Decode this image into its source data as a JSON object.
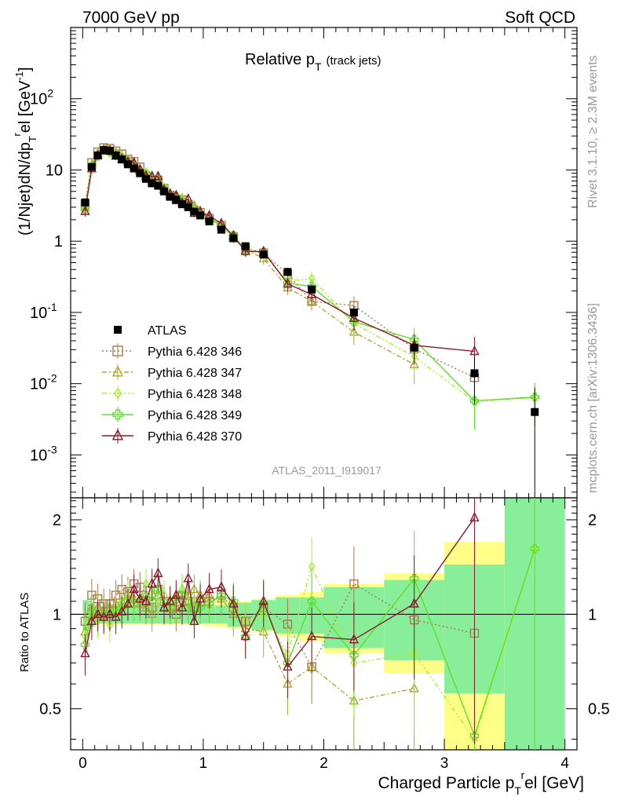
{
  "header": {
    "left": "7000 GeV pp",
    "right": "Soft QCD"
  },
  "side": {
    "rivet": "Rivet 3.1.10, ≥ 2.3M events",
    "mcplots": "mcplots.cern.ch [arXiv:1306.3436]"
  },
  "chart_data": {
    "type": "scatter",
    "title": "Relative p_T (track jets)",
    "title_main": "Relative p",
    "title_sub": "T",
    "title_note": "(track jets)",
    "analysis_label": "ATLAS_2011_I919017",
    "xlabel": "Charged Particle p_T^rel [GeV]",
    "xlabel_main": "Charged Particle p",
    "xlabel_sub": "T",
    "xlabel_sup": "r",
    "xlabel_tail": "el [GeV]",
    "ylabel": "(1/Njet)dN/dp_T^rel [GeV^-1]",
    "ylabel_pre": "(1/Njet)dN/dp",
    "ylabel_sub": "T",
    "ylabel_sup": "r",
    "ylabel_mid": "el [GeV",
    "ylabel_exp": "-1",
    "ylabel_end": "]",
    "ratio_ylabel": "Ratio to ATLAS",
    "xlim": [
      -0.1,
      4.1
    ],
    "ylim": [
      0.00025,
      1000
    ],
    "yscale": "log",
    "ratio_ylim": [
      0.37,
      2.35
    ],
    "x_ticks": [
      "0",
      "1",
      "2",
      "3",
      "4"
    ],
    "y_ticks": [
      {
        "base": "10",
        "exp": "-3"
      },
      {
        "base": "10",
        "exp": "-2"
      },
      {
        "base": "10",
        "exp": "-1"
      },
      {
        "base": "1",
        "exp": ""
      },
      {
        "base": "10",
        "exp": ""
      },
      {
        "base": "10",
        "exp": "2"
      }
    ],
    "ratio_ticks": [
      "0.5",
      "1",
      "2"
    ],
    "legend_position": "middle-left",
    "data": {
      "name": "ATLAS",
      "x": [
        0.02,
        0.075,
        0.125,
        0.175,
        0.225,
        0.275,
        0.325,
        0.375,
        0.425,
        0.475,
        0.525,
        0.575,
        0.625,
        0.675,
        0.725,
        0.775,
        0.825,
        0.875,
        0.925,
        0.975,
        1.05,
        1.15,
        1.25,
        1.35,
        1.5,
        1.7,
        1.9,
        2.25,
        2.75,
        3.25,
        3.75
      ],
      "y": [
        3.5,
        11,
        16,
        19,
        18.5,
        16,
        14,
        12,
        10.5,
        9,
        7.5,
        6.5,
        6,
        5,
        4.2,
        3.8,
        3.3,
        3.0,
        2.6,
        2.3,
        1.9,
        1.45,
        1.1,
        0.85,
        0.65,
        0.37,
        0.21,
        0.1,
        0.032,
        0.014,
        0.004
      ],
      "rel_err_stat": [
        0.05,
        0.04,
        0.03,
        0.03,
        0.03,
        0.03,
        0.03,
        0.03,
        0.03,
        0.03,
        0.03,
        0.03,
        0.03,
        0.03,
        0.03,
        0.03,
        0.03,
        0.03,
        0.03,
        0.03,
        0.03,
        0.03,
        0.04,
        0.04,
        0.05,
        0.06,
        0.06,
        0.1,
        0.13,
        0.2,
        0.7
      ],
      "rel_err_total": [
        0.1,
        0.08,
        0.07,
        0.07,
        0.07,
        0.07,
        0.07,
        0.07,
        0.07,
        0.07,
        0.07,
        0.07,
        0.07,
        0.07,
        0.07,
        0.07,
        0.07,
        0.07,
        0.07,
        0.07,
        0.08,
        0.09,
        0.1,
        0.1,
        0.12,
        0.15,
        0.18,
        0.25,
        0.35,
        0.7,
        1.2
      ],
      "bins": [
        [
          0,
          0.05
        ],
        [
          0.05,
          0.1
        ],
        [
          0.1,
          0.15
        ],
        [
          0.15,
          0.2
        ],
        [
          0.2,
          0.25
        ],
        [
          0.25,
          0.3
        ],
        [
          0.3,
          0.35
        ],
        [
          0.35,
          0.4
        ],
        [
          0.4,
          0.45
        ],
        [
          0.45,
          0.5
        ],
        [
          0.5,
          0.55
        ],
        [
          0.55,
          0.6
        ],
        [
          0.6,
          0.65
        ],
        [
          0.65,
          0.7
        ],
        [
          0.7,
          0.75
        ],
        [
          0.75,
          0.8
        ],
        [
          0.8,
          0.85
        ],
        [
          0.85,
          0.9
        ],
        [
          0.9,
          0.95
        ],
        [
          0.95,
          1.0
        ],
        [
          1.0,
          1.1
        ],
        [
          1.1,
          1.2
        ],
        [
          1.2,
          1.3
        ],
        [
          1.3,
          1.4
        ],
        [
          1.4,
          1.6
        ],
        [
          1.6,
          1.8
        ],
        [
          1.8,
          2.0
        ],
        [
          2.0,
          2.5
        ],
        [
          2.5,
          3.0
        ],
        [
          3.0,
          3.5
        ],
        [
          3.5,
          4.0
        ]
      ]
    },
    "series": [
      {
        "name": "Pythia 6.428 346",
        "color": "#a67c52",
        "dash": "2,3",
        "marker": "square-open",
        "x": [
          0.02,
          0.075,
          0.125,
          0.175,
          0.225,
          0.275,
          0.325,
          0.375,
          0.425,
          0.475,
          0.525,
          0.575,
          0.625,
          0.675,
          0.725,
          0.775,
          0.825,
          0.875,
          0.925,
          0.975,
          1.05,
          1.15,
          1.25,
          1.35,
          1.5,
          1.7,
          1.9,
          2.25,
          2.75,
          3.25
        ],
        "ratio": [
          0.95,
          1.15,
          1.12,
          1.08,
          1.08,
          1.15,
          1.2,
          1.18,
          1.25,
          1.22,
          1.1,
          1.05,
          1.2,
          1.1,
          1.05,
          1.0,
          1.15,
          1.1,
          1.05,
          1.1,
          1.1,
          1.15,
          1.05,
          0.95,
          1.05,
          0.93,
          0.68,
          1.25,
          0.96,
          0.87
        ]
      },
      {
        "name": "Pythia 6.428 347",
        "color": "#a8a832",
        "dash": "6,3,2,3",
        "marker": "triangle-open",
        "x": [
          0.02,
          0.075,
          0.125,
          0.175,
          0.225,
          0.275,
          0.325,
          0.375,
          0.425,
          0.475,
          0.525,
          0.575,
          0.625,
          0.675,
          0.725,
          0.775,
          0.825,
          0.875,
          0.925,
          0.975,
          1.05,
          1.15,
          1.25,
          1.35,
          1.5,
          1.7,
          1.9,
          2.25,
          2.75
        ],
        "ratio": [
          0.88,
          1.05,
          1.05,
          1.02,
          1.05,
          1.08,
          1.1,
          1.15,
          1.12,
          1.08,
          1.05,
          1.0,
          1.15,
          1.05,
          1.1,
          1.05,
          1.2,
          1.1,
          1.2,
          1.15,
          1.15,
          1.12,
          1.0,
          0.9,
          0.88,
          0.6,
          0.68,
          0.53,
          0.58
        ]
      },
      {
        "name": "Pythia 6.428 348",
        "color": "#aaee33",
        "dash": "6,3,2,3,2,3",
        "marker": "diamond-open",
        "x": [
          0.02,
          0.075,
          0.125,
          0.175,
          0.225,
          0.275,
          0.325,
          0.375,
          0.425,
          0.475,
          0.525,
          0.575,
          0.625,
          0.675,
          0.725,
          0.775,
          0.825,
          0.875,
          0.925,
          0.975,
          1.05,
          1.15,
          1.25,
          1.35,
          1.5,
          1.7,
          1.9,
          2.25,
          2.75,
          3.25,
          3.75
        ],
        "ratio": [
          0.85,
          1.0,
          0.95,
          0.98,
          0.92,
          1.02,
          1.1,
          1.15,
          1.1,
          1.12,
          1.25,
          1.2,
          1.1,
          1.15,
          1.05,
          1.1,
          1.2,
          1.15,
          1.05,
          1.1,
          1.1,
          1.12,
          1.05,
          0.95,
          1.0,
          0.75,
          1.42,
          0.7,
          0.75,
          0.4,
          1.6
        ]
      },
      {
        "name": "Pythia 6.428 349",
        "color": "#5ee02a",
        "dash": "",
        "marker": "cross-open",
        "x": [
          0.02,
          0.075,
          0.125,
          0.175,
          0.225,
          0.275,
          0.325,
          0.375,
          0.425,
          0.475,
          0.525,
          0.575,
          0.625,
          0.675,
          0.725,
          0.775,
          0.825,
          0.875,
          0.925,
          0.975,
          1.05,
          1.15,
          1.25,
          1.35,
          1.5,
          1.7,
          1.9,
          2.25,
          2.75,
          3.25,
          3.75
        ],
        "ratio": [
          0.8,
          1.02,
          0.98,
          1.0,
          1.0,
          1.02,
          1.05,
          1.1,
          1.08,
          1.1,
          1.15,
          1.1,
          1.2,
          1.1,
          1.05,
          1.12,
          1.15,
          1.05,
          1.1,
          1.05,
          1.08,
          1.15,
          1.1,
          0.85,
          1.08,
          0.7,
          1.1,
          0.74,
          1.3,
          0.41,
          1.62
        ]
      },
      {
        "name": "Pythia 6.428 370",
        "color": "#8b1a2e",
        "dash": "",
        "marker": "triangle-open",
        "x": [
          0.02,
          0.075,
          0.125,
          0.175,
          0.225,
          0.275,
          0.325,
          0.375,
          0.425,
          0.475,
          0.525,
          0.575,
          0.625,
          0.675,
          0.725,
          0.775,
          0.825,
          0.875,
          0.925,
          0.975,
          1.05,
          1.15,
          1.25,
          1.35,
          1.5,
          1.7,
          1.9,
          2.25,
          2.75,
          3.25
        ],
        "ratio": [
          0.75,
          0.95,
          1.0,
          0.98,
          1.0,
          0.98,
          1.02,
          1.08,
          1.2,
          1.12,
          1.1,
          1.25,
          1.35,
          1.05,
          1.1,
          1.15,
          1.05,
          1.3,
          0.95,
          1.12,
          1.2,
          1.22,
          1.08,
          0.85,
          1.1,
          0.68,
          0.85,
          0.83,
          1.08,
          2.03
        ]
      }
    ]
  }
}
